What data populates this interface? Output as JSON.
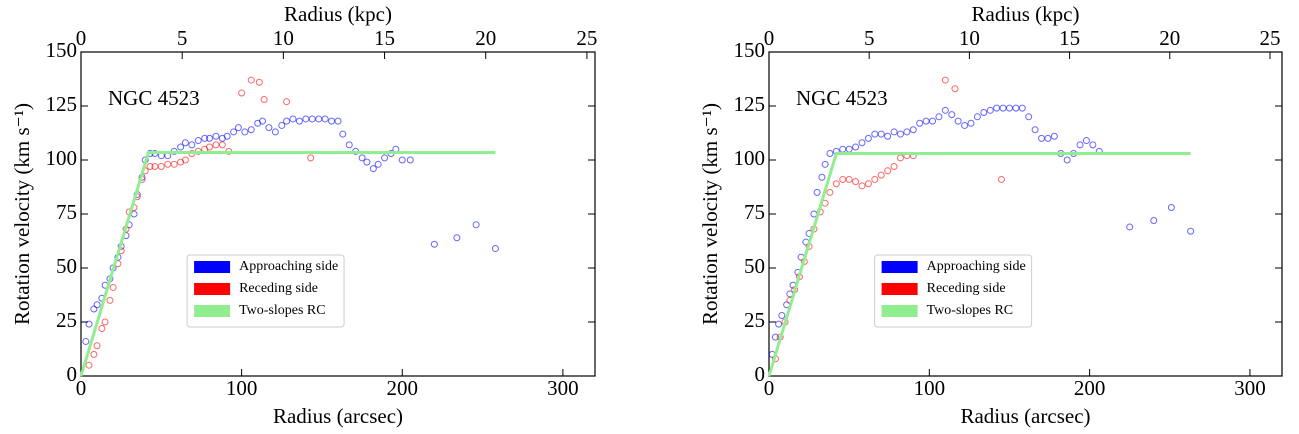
{
  "chart_data": [
    {
      "type": "scatter",
      "annotation": "NGC 4523",
      "xlabel": "Radius (arcsec)",
      "ylabel": "Rotation velocity (km s⁻¹)",
      "top_xlabel": "Radius (kpc)",
      "xlim": [
        0,
        320
      ],
      "xticks": [
        0,
        100,
        200,
        300
      ],
      "top_xlim": [
        0,
        25.4
      ],
      "top_xticks": [
        0,
        5,
        10,
        15,
        20,
        25
      ],
      "ylim": [
        0,
        150
      ],
      "yticks": [
        0,
        25,
        50,
        75,
        100,
        125,
        150
      ],
      "legend": "lower center",
      "series": [
        {
          "name": "Approaching side",
          "color": "#0000ff",
          "style": "points",
          "x": [
            3,
            5,
            8,
            10,
            13,
            15,
            18,
            20,
            23,
            25,
            28,
            30,
            33,
            35,
            38,
            40,
            43,
            46,
            50,
            54,
            58,
            62,
            65,
            69,
            73,
            77,
            80,
            84,
            88,
            91,
            95,
            98,
            102,
            106,
            110,
            113,
            117,
            121,
            125,
            128,
            132,
            136,
            140,
            144,
            148,
            152,
            156,
            160,
            163,
            167,
            171,
            175,
            178,
            182,
            185,
            189,
            193,
            196,
            200,
            205,
            220,
            234,
            246,
            258
          ],
          "values": [
            16,
            24,
            31,
            33,
            36,
            42,
            45,
            50,
            55,
            60,
            65,
            70,
            75,
            84,
            92,
            100,
            103,
            103,
            102,
            102,
            104,
            106,
            108,
            107,
            109,
            110,
            110,
            111,
            110,
            111,
            113,
            115,
            113,
            114,
            117,
            118,
            115,
            113,
            116,
            118,
            119,
            118,
            119,
            119,
            119,
            119,
            118,
            118,
            112,
            107,
            104,
            101,
            99,
            96,
            98,
            101,
            103,
            105,
            100,
            100,
            61,
            64,
            70,
            59
          ]
        },
        {
          "name": "Receding side",
          "color": "#ff0000",
          "style": "points",
          "x": [
            5,
            8,
            10,
            13,
            15,
            18,
            20,
            23,
            25,
            28,
            30,
            33,
            35,
            38,
            40,
            43,
            46,
            50,
            54,
            58,
            62,
            65,
            69,
            73,
            77,
            80,
            84,
            88,
            92,
            100,
            106,
            111,
            114,
            128,
            143
          ],
          "values": [
            5,
            10,
            14,
            22,
            25,
            35,
            41,
            52,
            58,
            68,
            76,
            78,
            83,
            91,
            95,
            97,
            97,
            97,
            98,
            98,
            99,
            100,
            103,
            104,
            105,
            106,
            107,
            107,
            104,
            131,
            137,
            136,
            128,
            127,
            101
          ]
        },
        {
          "name": "Two-slopes RC",
          "color": "#90ee90",
          "style": "line",
          "x": [
            0,
            42,
            258
          ],
          "values": [
            0,
            103.5,
            103.5
          ]
        }
      ]
    },
    {
      "type": "scatter",
      "annotation": "NGC 4523",
      "xlabel": "Radius (arcsec)",
      "ylabel": "Rotation velocity (km s⁻¹)",
      "top_xlabel": "Radius (kpc)",
      "xlim": [
        0,
        320
      ],
      "xticks": [
        0,
        100,
        200,
        300
      ],
      "top_xlim": [
        0,
        25.6
      ],
      "top_xticks": [
        0,
        5,
        10,
        15,
        20,
        25
      ],
      "ylim": [
        0,
        150
      ],
      "yticks": [
        0,
        25,
        50,
        75,
        100,
        125,
        150
      ],
      "legend": "lower center",
      "series": [
        {
          "name": "Approaching side",
          "color": "#0000ff",
          "style": "points",
          "x": [
            2,
            4,
            6,
            8,
            11,
            13,
            15,
            18,
            20,
            23,
            25,
            28,
            30,
            33,
            35,
            38,
            42,
            46,
            50,
            54,
            58,
            62,
            66,
            70,
            74,
            78,
            82,
            86,
            90,
            94,
            98,
            102,
            106,
            110,
            114,
            118,
            122,
            126,
            130,
            134,
            138,
            142,
            146,
            150,
            154,
            158,
            162,
            166,
            170,
            174,
            178,
            182,
            186,
            190,
            194,
            198,
            202,
            206,
            225,
            240,
            251,
            263
          ],
          "values": [
            10,
            18,
            24,
            28,
            33,
            38,
            42,
            48,
            55,
            62,
            66,
            75,
            85,
            92,
            98,
            103,
            104,
            105,
            105,
            106,
            108,
            110,
            112,
            112,
            111,
            113,
            112,
            113,
            114,
            117,
            118,
            118,
            120,
            123,
            121,
            118,
            116,
            117,
            120,
            122,
            123,
            124,
            124,
            124,
            124,
            124,
            120,
            114,
            110,
            110,
            111,
            103,
            100,
            103,
            107,
            109,
            107,
            104,
            69,
            72,
            78,
            67
          ]
        },
        {
          "name": "Receding side",
          "color": "#ff0000",
          "style": "points",
          "x": [
            4,
            7,
            10,
            13,
            16,
            19,
            22,
            25,
            28,
            32,
            35,
            38,
            42,
            46,
            50,
            54,
            58,
            62,
            66,
            70,
            74,
            78,
            82,
            86,
            90,
            110,
            116,
            145
          ],
          "values": [
            8,
            18,
            25,
            35,
            40,
            46,
            53,
            60,
            68,
            76,
            80,
            85,
            89,
            91,
            91,
            90,
            88,
            89,
            91,
            93,
            95,
            97,
            101,
            102,
            102,
            137,
            133,
            91
          ]
        },
        {
          "name": "Two-slopes RC",
          "color": "#90ee90",
          "style": "line",
          "x": [
            0,
            42,
            263
          ],
          "values": [
            0,
            103,
            103
          ]
        }
      ]
    }
  ]
}
